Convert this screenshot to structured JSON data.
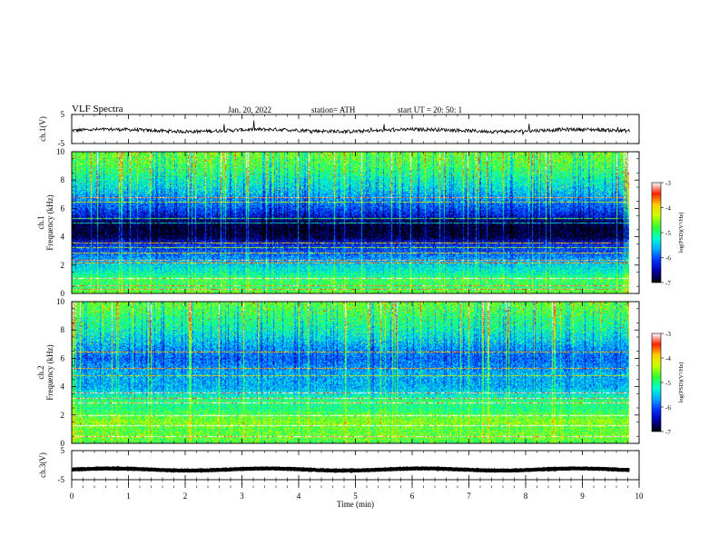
{
  "header": {
    "title": "VLF Spectra",
    "date": "Jan. 20, 2022",
    "station": "station= ATH",
    "start_ut": "start UT = 20: 50: 1"
  },
  "colors": {
    "trace": "#000000",
    "axis": "#000000",
    "colormap": [
      "#000000",
      "#0000a0",
      "#0030ff",
      "#00aaff",
      "#00ffd0",
      "#30ff30",
      "#c8ff00",
      "#ffd000",
      "#ff2000",
      "#ffffff"
    ]
  },
  "chart_data": [
    {
      "type": "line",
      "panel": "ch1-waveform",
      "ylabel": "ch.1(V)",
      "ylim": [
        -5,
        5
      ],
      "yticks": [
        "5",
        "-5"
      ],
      "series": [
        {
          "values_mean": -0.5,
          "noise_amplitude": 0.6
        }
      ]
    },
    {
      "type": "heatmap",
      "panel": "ch1-spectrogram",
      "ylabel_channel": "ch.1",
      "ylabel": "Frequency (kHz)",
      "ylim": [
        0,
        10
      ],
      "yticks": [
        "0",
        "2",
        "4",
        "6",
        "8",
        "10"
      ],
      "colorbar": {
        "label": "log(PSD)(V²/Hz)",
        "range": [
          -7,
          -3
        ],
        "ticks": [
          "-3",
          "-4",
          "-5",
          "-6",
          "-7"
        ]
      },
      "frequency_profile_khz": [
        [
          0,
          -4.6
        ],
        [
          0.5,
          -4.9
        ],
        [
          1,
          -4.8
        ],
        [
          1.5,
          -5.2
        ],
        [
          2,
          -5.4
        ],
        [
          2.5,
          -5.7
        ],
        [
          3,
          -6.0
        ],
        [
          3.5,
          -6.2
        ],
        [
          4,
          -6.8
        ],
        [
          4.5,
          -6.9
        ],
        [
          5,
          -6.8
        ],
        [
          5.5,
          -6.3
        ],
        [
          6,
          -6.0
        ],
        [
          7,
          -5.6
        ],
        [
          8,
          -5.2
        ],
        [
          9,
          -4.8
        ],
        [
          10,
          -4.6
        ]
      ],
      "spectral_lines_khz": [
        0.3,
        0.6,
        1.1,
        2.2,
        2.4,
        2.9,
        3.3,
        3.6,
        5.0,
        5.3,
        6.5,
        6.8
      ]
    },
    {
      "type": "heatmap",
      "panel": "ch2-spectrogram",
      "ylabel_channel": "ch.2",
      "ylabel": "Frequency (kHz)",
      "ylim": [
        0,
        10
      ],
      "yticks": [
        "0",
        "2",
        "4",
        "6",
        "8",
        "10"
      ],
      "colorbar": {
        "label": "log(PSD)(V²/Hz)",
        "range": [
          -7,
          -3
        ],
        "ticks": [
          "-3",
          "-4",
          "-5",
          "-6",
          "-7"
        ]
      },
      "frequency_profile_khz": [
        [
          0,
          -4.8
        ],
        [
          0.5,
          -4.6
        ],
        [
          1,
          -4.7
        ],
        [
          1.5,
          -4.5
        ],
        [
          2,
          -4.7
        ],
        [
          2.5,
          -5.0
        ],
        [
          3,
          -4.9
        ],
        [
          3.5,
          -5.3
        ],
        [
          4,
          -5.6
        ],
        [
          5,
          -5.6
        ],
        [
          6,
          -5.9
        ],
        [
          7,
          -5.6
        ],
        [
          8,
          -5.2
        ],
        [
          9,
          -4.9
        ],
        [
          10,
          -4.6
        ]
      ],
      "spectral_lines_khz": [
        0.5,
        1.3,
        2.0,
        2.9,
        3.2,
        3.6,
        4.8,
        5.3,
        6.5
      ]
    },
    {
      "type": "line",
      "panel": "ch3-waveform",
      "ylabel": "ch.3(V)",
      "ylim": [
        -5,
        5
      ],
      "yticks": [
        "5",
        "-5"
      ],
      "series": [
        {
          "values_mean": -1.5,
          "noise_amplitude": 0.1
        }
      ]
    }
  ],
  "xaxis": {
    "label": "Time (min)",
    "range": [
      0,
      10
    ],
    "data_end": 9.83,
    "ticks": [
      "0",
      "1",
      "2",
      "3",
      "4",
      "5",
      "6",
      "7",
      "8",
      "9",
      "10"
    ]
  }
}
